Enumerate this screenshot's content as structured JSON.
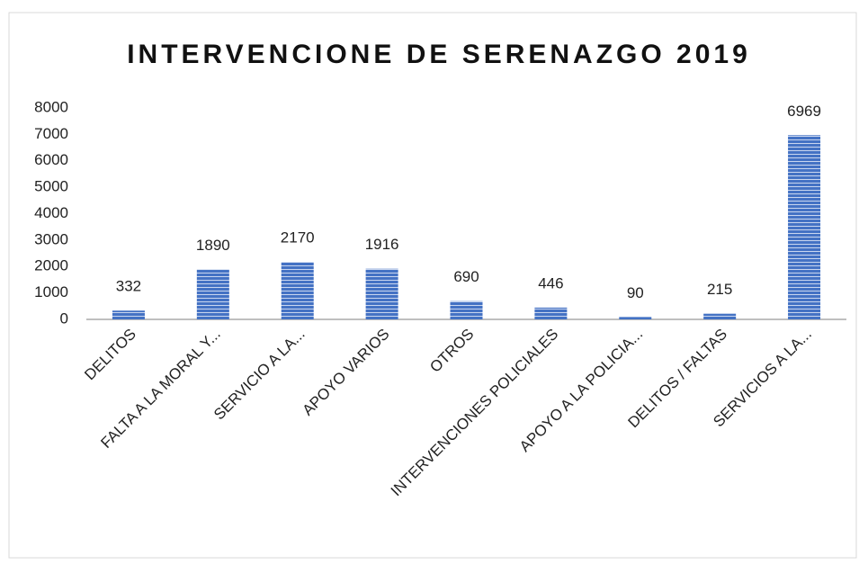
{
  "chart_data": {
    "type": "bar",
    "title": "INTERVENCIONE DE SERENAZGO 2019",
    "categories": [
      "DELITOS",
      "FALTA A LA MORAL Y...",
      "SERVICIO A LA...",
      "APOYO VARIOS",
      "OTROS",
      "INTERVENCIONES POLICIALES",
      "APOYO A LA POLICIA...",
      "DELITOS / FALTAS",
      "SERVICIOS A LA..."
    ],
    "values": [
      332,
      1890,
      2170,
      1916,
      690,
      446,
      90,
      215,
      6969
    ],
    "color": "#4472c4",
    "ylim": [
      0,
      8000
    ],
    "yticks": [
      0,
      1000,
      2000,
      3000,
      4000,
      5000,
      6000,
      7000,
      8000
    ],
    "grid": false
  }
}
